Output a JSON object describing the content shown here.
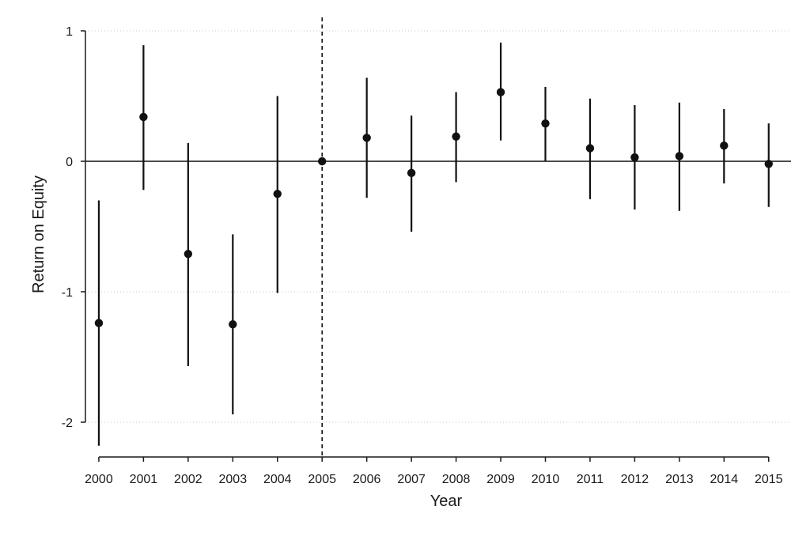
{
  "chart_data": {
    "type": "scatter",
    "title": "",
    "xlabel": "Year",
    "ylabel": "Return on Equity",
    "x": [
      2000,
      2001,
      2002,
      2003,
      2004,
      2005,
      2006,
      2007,
      2008,
      2009,
      2010,
      2011,
      2012,
      2013,
      2014,
      2015
    ],
    "x_tick_labels": [
      "2000",
      "2001",
      "2002",
      "2003",
      "2004",
      "2005",
      "2006",
      "2007",
      "2008",
      "2009",
      "2010",
      "2011",
      "2012",
      "2013",
      "2014",
      "2015"
    ],
    "y_tick_labels": [
      "1",
      "0",
      "-1",
      "-2"
    ],
    "y_ticks": [
      1,
      0,
      -1,
      -2
    ],
    "xlim": [
      1999.7,
      2015.5
    ],
    "ylim": [
      -2.25,
      1.0
    ],
    "series": [
      {
        "estimates": [
          -1.24,
          0.34,
          -0.71,
          -1.25,
          -0.25,
          0.0,
          0.18,
          -0.09,
          0.19,
          0.53,
          0.29,
          0.1,
          0.03,
          0.04,
          0.12,
          -0.02
        ],
        "ci_lower": [
          -2.18,
          -0.22,
          -1.57,
          -1.94,
          -1.01,
          0.0,
          -0.28,
          -0.54,
          -0.16,
          0.16,
          0.0,
          -0.29,
          -0.37,
          -0.38,
          -0.17,
          -0.35
        ],
        "ci_upper": [
          -0.3,
          0.89,
          0.14,
          -0.56,
          0.5,
          0.0,
          0.64,
          0.35,
          0.53,
          0.91,
          0.57,
          0.48,
          0.43,
          0.45,
          0.4,
          0.29
        ]
      }
    ],
    "reference_line": {
      "x": 2005,
      "style": "dashed"
    },
    "zero_line": {
      "y": 0,
      "style": "solid"
    },
    "grid": {
      "horizontal": true,
      "style": "dotted"
    },
    "colors": {
      "marker": "#111111",
      "grid": "#c8c8c8",
      "background": "#ffffff"
    }
  }
}
